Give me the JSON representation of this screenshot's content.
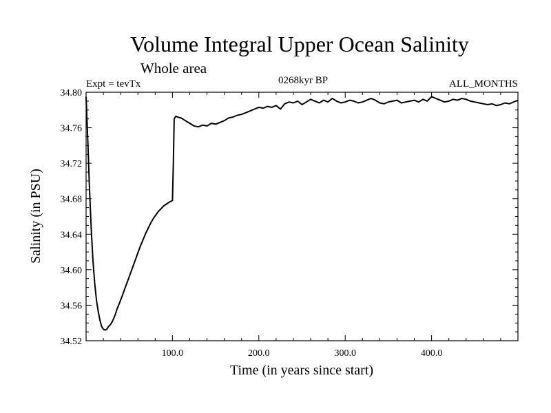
{
  "chart_data": {
    "type": "line",
    "title": "Volume Integral Upper Ocean Salinity",
    "subtitle": "Whole area",
    "left_label": "Expt = tevTx",
    "center_label": "0268kyr BP",
    "right_label": "ALL_MONTHS",
    "xlabel": "Time (in years since start)",
    "ylabel": "Salinity (in PSU)",
    "xlim": [
      0,
      500
    ],
    "ylim": [
      34.52,
      34.8
    ],
    "xticks": [
      100,
      200,
      300,
      400
    ],
    "xtick_labels": [
      "100.0",
      "200.0",
      "300.0",
      "400.0"
    ],
    "yticks": [
      34.52,
      34.56,
      34.6,
      34.64,
      34.68,
      34.72,
      34.76,
      34.8
    ],
    "ytick_labels": [
      "34.52",
      "34.56",
      "34.60",
      "34.64",
      "34.68",
      "34.72",
      "34.76",
      "34.80"
    ],
    "grid": false,
    "series_color": "#000000",
    "series": [
      {
        "x": [
          0,
          2,
          4,
          6,
          8,
          10,
          12,
          14,
          16,
          18,
          20,
          22,
          24,
          26,
          28,
          30,
          32,
          34,
          36,
          38,
          40,
          42,
          45,
          48,
          51,
          54,
          57,
          60,
          63,
          66,
          69,
          72,
          75,
          78,
          81,
          84,
          87,
          90,
          93,
          96,
          98,
          100,
          101,
          102,
          104,
          106,
          110,
          115,
          120,
          125,
          130,
          135,
          140,
          145,
          150,
          155,
          160,
          165,
          170,
          175,
          180,
          185,
          190,
          195,
          200,
          205,
          210,
          215,
          220,
          225,
          230,
          235,
          240,
          245,
          250,
          255,
          260,
          265,
          270,
          275,
          280,
          285,
          290,
          295,
          300,
          305,
          310,
          315,
          320,
          325,
          330,
          335,
          340,
          345,
          350,
          355,
          360,
          365,
          370,
          375,
          380,
          385,
          390,
          395,
          400,
          405,
          410,
          415,
          420,
          425,
          430,
          435,
          440,
          445,
          450,
          455,
          460,
          465,
          470,
          475,
          480,
          485,
          490,
          495,
          500
        ],
        "y": [
          34.795,
          34.745,
          34.69,
          34.645,
          34.61,
          34.585,
          34.566,
          34.553,
          34.543,
          34.536,
          34.533,
          34.532,
          34.533,
          34.536,
          34.538,
          34.541,
          34.545,
          34.55,
          34.556,
          34.561,
          34.566,
          34.571,
          34.579,
          34.587,
          34.595,
          34.603,
          34.611,
          34.619,
          34.627,
          34.634,
          34.641,
          34.647,
          34.653,
          34.658,
          34.662,
          34.666,
          34.669,
          34.672,
          34.674,
          34.676,
          34.677,
          34.678,
          34.72,
          34.77,
          34.773,
          34.772,
          34.771,
          34.768,
          34.765,
          34.762,
          34.761,
          34.763,
          34.762,
          34.765,
          34.764,
          34.766,
          34.768,
          34.771,
          34.772,
          34.774,
          34.775,
          34.777,
          34.779,
          34.781,
          34.783,
          34.782,
          34.784,
          34.783,
          34.785,
          34.781,
          34.787,
          34.789,
          34.788,
          34.79,
          34.786,
          34.789,
          34.792,
          34.79,
          34.788,
          34.791,
          34.789,
          34.793,
          34.79,
          34.788,
          34.789,
          34.791,
          34.79,
          34.788,
          34.789,
          34.791,
          34.793,
          34.791,
          34.788,
          34.787,
          34.789,
          34.79,
          34.791,
          34.788,
          34.789,
          34.79,
          34.791,
          34.789,
          34.792,
          34.79,
          34.795,
          34.793,
          34.791,
          34.789,
          34.79,
          34.792,
          34.791,
          34.793,
          34.792,
          34.79,
          34.789,
          34.788,
          34.787,
          34.786,
          34.787,
          34.785,
          34.786,
          34.788,
          34.787,
          34.789,
          34.791
        ]
      }
    ]
  }
}
